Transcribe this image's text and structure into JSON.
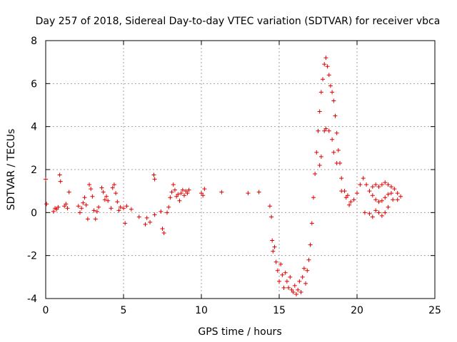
{
  "chart_data": {
    "type": "scatter",
    "title": "Day 257 of 2018, Sidereal Day-to-day VTEC variation (SDTVAR) for receiver vbca",
    "xlabel": "GPS time / hours",
    "ylabel": "SDTVAR / TECUs",
    "xlim": [
      0,
      25
    ],
    "ylim": [
      -4,
      8
    ],
    "xticks": [
      0,
      5,
      10,
      15,
      20,
      25
    ],
    "yticks": [
      -4,
      -2,
      0,
      2,
      4,
      6,
      8
    ],
    "x_tick_labels": [
      "0",
      "5",
      "10",
      "15",
      "20",
      "25"
    ],
    "y_tick_labels": [
      "-4",
      "-2",
      "0",
      "2",
      "4",
      "6",
      "8"
    ],
    "grid": true,
    "marker": "+",
    "series": [
      {
        "name": "SDTVAR",
        "color": "#e00000",
        "points": [
          [
            0.0,
            1.55
          ],
          [
            0.05,
            0.4
          ],
          [
            0.5,
            0.05
          ],
          [
            0.6,
            0.2
          ],
          [
            0.7,
            0.15
          ],
          [
            0.8,
            0.25
          ],
          [
            0.9,
            1.75
          ],
          [
            0.95,
            1.45
          ],
          [
            1.2,
            0.3
          ],
          [
            1.3,
            0.4
          ],
          [
            1.4,
            0.2
          ],
          [
            1.5,
            0.95
          ],
          [
            2.1,
            0.3
          ],
          [
            2.2,
            0.0
          ],
          [
            2.3,
            0.2
          ],
          [
            2.4,
            0.45
          ],
          [
            2.5,
            0.7
          ],
          [
            2.6,
            0.35
          ],
          [
            2.7,
            -0.3
          ],
          [
            2.8,
            1.3
          ],
          [
            2.9,
            1.1
          ],
          [
            3.0,
            0.75
          ],
          [
            3.1,
            0.1
          ],
          [
            3.2,
            -0.3
          ],
          [
            3.3,
            0.05
          ],
          [
            3.4,
            0.25
          ],
          [
            3.6,
            1.15
          ],
          [
            3.7,
            0.95
          ],
          [
            3.8,
            0.6
          ],
          [
            3.9,
            0.75
          ],
          [
            4.0,
            0.55
          ],
          [
            4.2,
            0.2
          ],
          [
            4.3,
            1.15
          ],
          [
            4.4,
            1.3
          ],
          [
            4.5,
            0.9
          ],
          [
            4.6,
            0.5
          ],
          [
            4.7,
            0.1
          ],
          [
            4.8,
            0.25
          ],
          [
            5.0,
            0.2
          ],
          [
            5.1,
            -0.5
          ],
          [
            5.2,
            0.3
          ],
          [
            5.5,
            0.15
          ],
          [
            6.0,
            -0.2
          ],
          [
            6.4,
            -0.55
          ],
          [
            6.5,
            -0.25
          ],
          [
            6.7,
            -0.45
          ],
          [
            7.0,
            -0.1
          ],
          [
            7.4,
            0.05
          ],
          [
            7.5,
            -0.75
          ],
          [
            7.6,
            -0.95
          ],
          [
            7.8,
            0.0
          ],
          [
            7.9,
            0.25
          ],
          [
            6.95,
            1.75
          ],
          [
            7.0,
            1.55
          ],
          [
            8.0,
            0.7
          ],
          [
            8.1,
            0.95
          ],
          [
            8.2,
            1.3
          ],
          [
            8.3,
            1.05
          ],
          [
            8.4,
            0.75
          ],
          [
            8.5,
            0.85
          ],
          [
            8.6,
            0.55
          ],
          [
            8.7,
            0.9
          ],
          [
            8.8,
            1.05
          ],
          [
            8.9,
            0.8
          ],
          [
            9.0,
            1.0
          ],
          [
            9.1,
            0.9
          ],
          [
            9.2,
            1.05
          ],
          [
            10.0,
            0.9
          ],
          [
            10.1,
            0.8
          ],
          [
            10.2,
            1.1
          ],
          [
            11.3,
            0.95
          ],
          [
            13.0,
            0.9
          ],
          [
            13.7,
            0.95
          ],
          [
            14.4,
            0.3
          ],
          [
            14.5,
            -0.2
          ],
          [
            14.55,
            -1.3
          ],
          [
            14.6,
            -1.8
          ],
          [
            14.7,
            -1.6
          ],
          [
            14.8,
            -2.3
          ],
          [
            14.9,
            -2.7
          ],
          [
            15.0,
            -3.2
          ],
          [
            15.1,
            -2.4
          ],
          [
            15.2,
            -2.9
          ],
          [
            15.3,
            -3.5
          ],
          [
            15.4,
            -2.8
          ],
          [
            15.5,
            -3.2
          ],
          [
            15.6,
            -3.5
          ],
          [
            15.7,
            -3.0
          ],
          [
            15.8,
            -3.6
          ],
          [
            15.9,
            -3.7
          ],
          [
            16.0,
            -3.4
          ],
          [
            16.1,
            -3.8
          ],
          [
            16.2,
            -3.6
          ],
          [
            16.3,
            -3.2
          ],
          [
            16.4,
            -3.7
          ],
          [
            16.5,
            -3.0
          ],
          [
            16.6,
            -2.6
          ],
          [
            16.7,
            -3.3
          ],
          [
            16.8,
            -2.7
          ],
          [
            16.9,
            -2.2
          ],
          [
            17.0,
            -1.5
          ],
          [
            17.1,
            -0.5
          ],
          [
            17.2,
            0.7
          ],
          [
            17.3,
            1.8
          ],
          [
            17.4,
            2.8
          ],
          [
            17.5,
            3.8
          ],
          [
            17.6,
            4.7
          ],
          [
            17.7,
            5.6
          ],
          [
            17.8,
            6.2
          ],
          [
            17.9,
            6.9
          ],
          [
            18.0,
            7.2
          ],
          [
            18.1,
            6.8
          ],
          [
            18.2,
            6.4
          ],
          [
            18.3,
            5.9
          ],
          [
            18.4,
            5.6
          ],
          [
            18.5,
            5.2
          ],
          [
            18.6,
            4.5
          ],
          [
            18.7,
            3.7
          ],
          [
            18.8,
            2.9
          ],
          [
            18.9,
            2.3
          ],
          [
            19.0,
            1.6
          ],
          [
            19.2,
            1.0
          ],
          [
            19.4,
            0.8
          ],
          [
            19.6,
            0.5
          ],
          [
            19.8,
            0.6
          ],
          [
            20.0,
            0.9
          ],
          [
            20.2,
            1.3
          ],
          [
            20.4,
            1.6
          ],
          [
            20.6,
            1.3
          ],
          [
            20.8,
            1.0
          ],
          [
            21.0,
            1.2
          ],
          [
            21.2,
            1.3
          ],
          [
            21.4,
            1.2
          ],
          [
            21.6,
            1.3
          ],
          [
            21.8,
            1.4
          ],
          [
            22.0,
            1.3
          ],
          [
            22.2,
            1.2
          ],
          [
            22.4,
            1.1
          ],
          [
            22.6,
            0.9
          ],
          [
            22.8,
            0.75
          ],
          [
            21.0,
            0.8
          ],
          [
            21.2,
            0.6
          ],
          [
            21.4,
            0.5
          ],
          [
            21.6,
            0.55
          ],
          [
            21.8,
            0.7
          ],
          [
            22.0,
            0.85
          ],
          [
            22.2,
            0.9
          ],
          [
            20.5,
            0.0
          ],
          [
            20.8,
            -0.05
          ],
          [
            21.0,
            -0.2
          ],
          [
            21.2,
            0.1
          ],
          [
            21.4,
            0.0
          ],
          [
            21.6,
            -0.15
          ],
          [
            21.8,
            0.0
          ],
          [
            22.0,
            0.25
          ],
          [
            22.3,
            0.6
          ],
          [
            22.6,
            0.6
          ],
          [
            17.9,
            3.8
          ],
          [
            18.0,
            3.9
          ],
          [
            18.2,
            3.8
          ],
          [
            18.4,
            3.4
          ],
          [
            17.6,
            2.2
          ],
          [
            17.7,
            2.6
          ],
          [
            18.5,
            2.8
          ],
          [
            18.7,
            2.3
          ],
          [
            19.0,
            1.0
          ],
          [
            19.3,
            0.7
          ],
          [
            19.5,
            0.35
          ]
        ]
      }
    ]
  }
}
